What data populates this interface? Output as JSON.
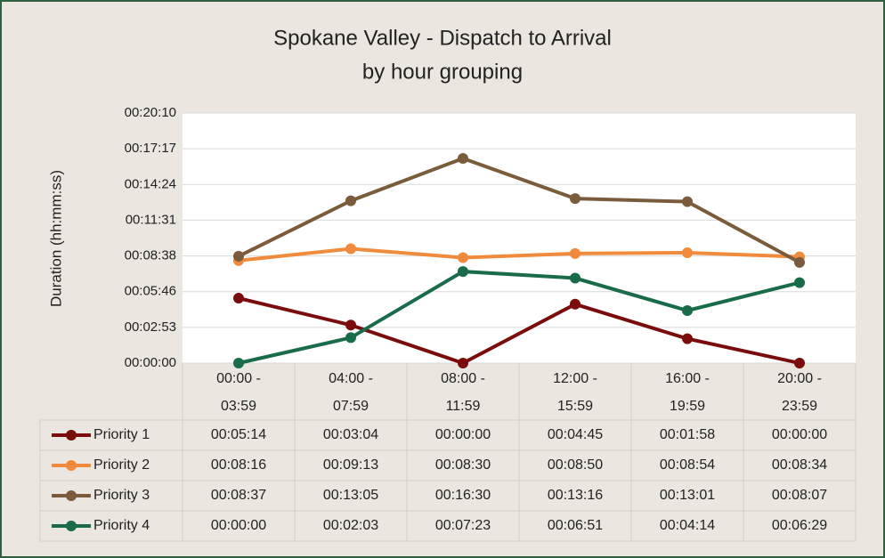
{
  "chart_data": {
    "type": "line",
    "title": "Spokane Valley - Dispatch to Arrival",
    "subtitle": "by hour grouping",
    "y_label": "Duration (hh:mm:ss)",
    "categories": [
      "00:00 - 03:59",
      "04:00 - 07:59",
      "08:00 - 11:59",
      "12:00 - 15:59",
      "16:00 - 19:59",
      "20:00 - 23:59"
    ],
    "ylim": [
      0,
      1209.6
    ],
    "yticks": [
      {
        "value": 0,
        "label": "00:00:00"
      },
      {
        "value": 172.8,
        "label": "00:02:53"
      },
      {
        "value": 345.6,
        "label": "00:05:46"
      },
      {
        "value": 518.4,
        "label": "00:08:38"
      },
      {
        "value": 691.2,
        "label": "00:11:31"
      },
      {
        "value": 864,
        "label": "00:14:24"
      },
      {
        "value": 1036.8,
        "label": "00:17:17"
      },
      {
        "value": 1209.6,
        "label": "00:20:10"
      }
    ],
    "grid": true,
    "series": [
      {
        "name": "Priority 1",
        "color": "#7b0c0c",
        "values": [
          314,
          184,
          0,
          285,
          118,
          0
        ],
        "value_labels": [
          "00:05:14",
          "00:03:04",
          "00:00:00",
          "00:04:45",
          "00:01:58",
          "00:00:00"
        ]
      },
      {
        "name": "Priority 2",
        "color": "#f08a3c",
        "values": [
          496,
          553,
          510,
          530,
          534,
          514
        ],
        "value_labels": [
          "00:08:16",
          "00:09:13",
          "00:08:30",
          "00:08:50",
          "00:08:54",
          "00:08:34"
        ]
      },
      {
        "name": "Priority 3",
        "color": "#7a5c3c",
        "values": [
          517,
          785,
          990,
          796,
          781,
          487
        ],
        "value_labels": [
          "00:08:37",
          "00:13:05",
          "00:16:30",
          "00:13:16",
          "00:13:01",
          "00:08:07"
        ]
      },
      {
        "name": "Priority 4",
        "color": "#1a6b4a",
        "values": [
          0,
          123,
          443,
          411,
          254,
          389
        ],
        "value_labels": [
          "00:00:00",
          "00:02:03",
          "00:07:23",
          "00:06:51",
          "00:04:14",
          "00:06:29"
        ]
      }
    ]
  }
}
